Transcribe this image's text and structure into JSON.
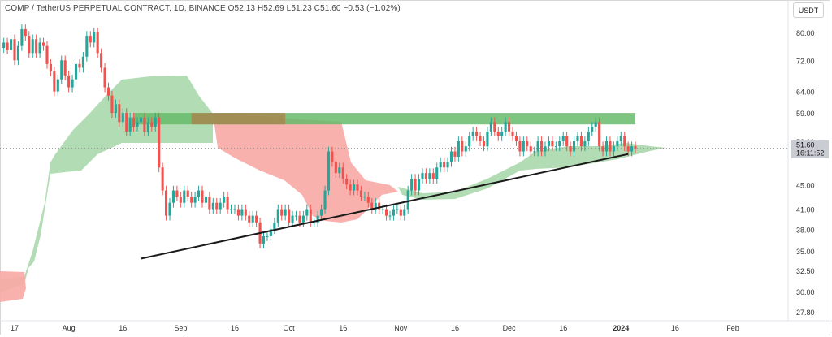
{
  "legend": {
    "text": "COMP / TetherUS PERPETUAL CONTRACT, 1D, BINANCE  O52.13  H52.69  L51.23  C51.60  −0.53 (−1.02%)"
  },
  "unit": "USDT",
  "colors": {
    "up": "#26a69a",
    "down": "#ef5350",
    "cloud_bull": "#a5d6a7",
    "cloud_bear": "#f8a9a5",
    "resistance_zone": "#66bb6a",
    "resistance_overlap": "#a58a52",
    "trendline": "#1a1a1a",
    "price_tag": "#c9ccd3"
  },
  "chart_data": {
    "type": "candlestick",
    "title": "COMP / TetherUS PERPETUAL CONTRACT, 1D, BINANCE",
    "ohlc_last": {
      "open": 52.13,
      "high": 52.69,
      "low": 51.23,
      "close": 51.6,
      "change": -0.53,
      "change_pct": -1.02
    },
    "y_scale": "log",
    "y_ticks": [
      "80.00",
      "72.00",
      "64.00",
      "59.00",
      "53.00",
      "45.00",
      "41.00",
      "38.00",
      "35.00",
      "32.50",
      "30.00",
      "27.80"
    ],
    "y_tick_values": [
      80,
      72,
      64,
      59,
      53,
      45,
      41,
      38,
      35,
      32.5,
      30,
      27.8
    ],
    "x_ticks": [
      "17",
      "Aug",
      "16",
      "Sep",
      "16",
      "Oct",
      "16",
      "Nov",
      "16",
      "Dec",
      "16",
      "2024",
      "16",
      "Feb"
    ],
    "x_tick_dates": [
      "2023-07-17",
      "2023-08-01",
      "2023-08-16",
      "2023-09-01",
      "2023-09-16",
      "2023-10-01",
      "2023-10-16",
      "2023-11-01",
      "2023-11-16",
      "2023-12-01",
      "2023-12-16",
      "2024-01-01",
      "2024-01-16",
      "2024-02-01"
    ],
    "price_label": "51.60",
    "countdown_label": "16:11:52",
    "trendline": {
      "from": {
        "date": "2023-08-21",
        "price": 34.0
      },
      "to": {
        "date": "2024-01-03",
        "price": 50.5
      }
    },
    "resistance_zone": {
      "from_date": "2023-08-19",
      "to_date": "2024-01-05",
      "low": 56.5,
      "high": 59.0
    },
    "closes": [
      77,
      75,
      78,
      72,
      76,
      81,
      79,
      74,
      78,
      74,
      77,
      76,
      71,
      69,
      64,
      67,
      72,
      68,
      65,
      67,
      71,
      70,
      73,
      79,
      77,
      80,
      74,
      70,
      65,
      63,
      59,
      61,
      57,
      59,
      55,
      58,
      56,
      57,
      58,
      55,
      57,
      56,
      58,
      48,
      44,
      40,
      42,
      44,
      43,
      42,
      44,
      43,
      42,
      43,
      44,
      42,
      43,
      41,
      42,
      41,
      42,
      43,
      41,
      41,
      41,
      40,
      41,
      40,
      39,
      40,
      39,
      36,
      37,
      37,
      38,
      39,
      41,
      40,
      41,
      39,
      40,
      40,
      39,
      40,
      41,
      39,
      39,
      40,
      41,
      44,
      51,
      49,
      47,
      48,
      46,
      45,
      44,
      45,
      44,
      43,
      43,
      42,
      41,
      42,
      41,
      41,
      40,
      40,
      41,
      41,
      40,
      41,
      44,
      46,
      44,
      46,
      47,
      46,
      47,
      46,
      48,
      49,
      48,
      49,
      51,
      50,
      53,
      51,
      52,
      54,
      55,
      54,
      53,
      52,
      55,
      57,
      55,
      54,
      55,
      57,
      55,
      54,
      53,
      51,
      53,
      52,
      51,
      51,
      53,
      51,
      52,
      53,
      52,
      52,
      53,
      54,
      52,
      51,
      53,
      54,
      52,
      53,
      55,
      56,
      57,
      52,
      51,
      53,
      51,
      52,
      53,
      54,
      52,
      51,
      52,
      51.6
    ]
  }
}
